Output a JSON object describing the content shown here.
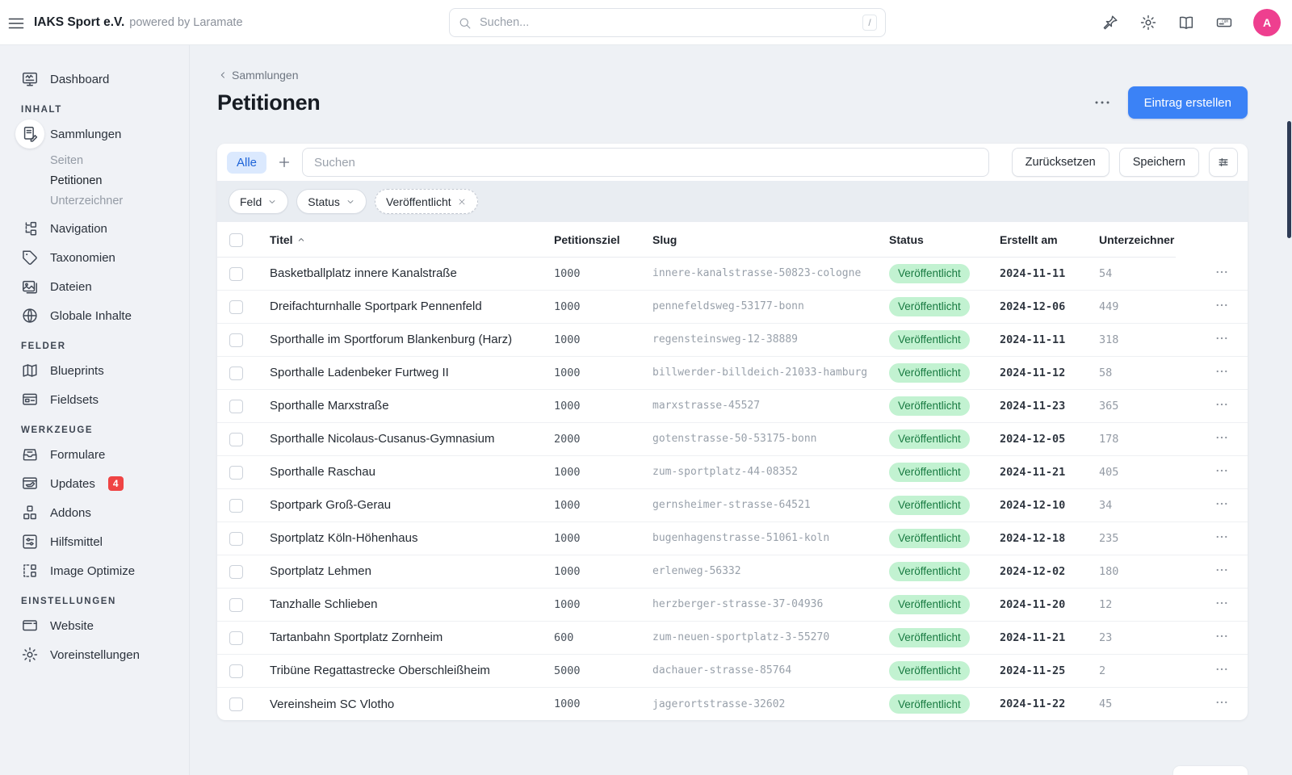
{
  "colors": {
    "accent": "#3b82f6",
    "status_published_bg": "#c2f2d1",
    "status_published_text": "#187a41",
    "updates_badge": "#ef4444",
    "avatar": "#ee3f8f"
  },
  "topbar": {
    "brand": "IAKS Sport e.V.",
    "brand_suffix": "powered by Laramate",
    "search_placeholder": "Suchen...",
    "search_shortcut": "/",
    "icons": [
      "pin",
      "gear",
      "book",
      "domain"
    ],
    "avatar_initial": "A"
  },
  "sidebar": {
    "sections": [
      {
        "header": "",
        "items": [
          {
            "label": "Dashboard",
            "icon": "dashboard"
          }
        ]
      },
      {
        "header": "INHALT",
        "items": [
          {
            "label": "Sammlungen",
            "icon": "collections",
            "active": true,
            "children": [
              {
                "label": "Seiten",
                "state": "muted"
              },
              {
                "label": "Petitionen",
                "state": "current"
              },
              {
                "label": "Unterzeichner",
                "state": "muted"
              }
            ]
          },
          {
            "label": "Navigation",
            "icon": "navigation"
          },
          {
            "label": "Taxonomien",
            "icon": "tag"
          },
          {
            "label": "Dateien",
            "icon": "assets"
          },
          {
            "label": "Globale Inhalte",
            "icon": "globe"
          }
        ]
      },
      {
        "header": "FELDER",
        "items": [
          {
            "label": "Blueprints",
            "icon": "blueprints"
          },
          {
            "label": "Fieldsets",
            "icon": "fieldsets"
          }
        ]
      },
      {
        "header": "WERKZEUGE",
        "items": [
          {
            "label": "Formulare",
            "icon": "forms"
          },
          {
            "label": "Updates",
            "icon": "updates",
            "badge": "4"
          },
          {
            "label": "Addons",
            "icon": "addons"
          },
          {
            "label": "Hilfsmittel",
            "icon": "utilities"
          },
          {
            "label": "Image Optimize",
            "icon": "image-optimize"
          }
        ]
      },
      {
        "header": "EINSTELLUNGEN",
        "items": [
          {
            "label": "Website",
            "icon": "website"
          },
          {
            "label": "Voreinstellungen",
            "icon": "preferences"
          }
        ]
      }
    ]
  },
  "page": {
    "breadcrumb": "Sammlungen",
    "title": "Petitionen",
    "create_button": "Eintrag erstellen"
  },
  "filters": {
    "tab": "Alle",
    "search_placeholder": "Suchen",
    "reset": "Zurücksetzen",
    "save": "Speichern",
    "chips": [
      {
        "label": "Feld",
        "type": "dropdown"
      },
      {
        "label": "Status",
        "type": "dropdown"
      },
      {
        "label": "Veröffentlicht",
        "type": "removable"
      }
    ]
  },
  "table": {
    "columns": [
      {
        "label": "Titel",
        "sorted": "asc"
      },
      {
        "label": "Petitionsziel"
      },
      {
        "label": "Slug"
      },
      {
        "label": "Status"
      },
      {
        "label": "Erstellt am"
      },
      {
        "label": "Unterzeichner"
      }
    ],
    "rows": [
      {
        "title": "Basketballplatz innere Kanalstraße",
        "goal": "1000",
        "slug": "innere-kanalstrasse-50823-cologne",
        "status": "Veröffentlicht",
        "created": "2024-11-11",
        "signers": "54"
      },
      {
        "title": "Dreifachturnhalle Sportpark Pennenfeld",
        "goal": "1000",
        "slug": "pennefeldsweg-53177-bonn",
        "status": "Veröffentlicht",
        "created": "2024-12-06",
        "signers": "449"
      },
      {
        "title": "Sporthalle im Sportforum Blankenburg (Harz)",
        "goal": "1000",
        "slug": "regensteinsweg-12-38889",
        "status": "Veröffentlicht",
        "created": "2024-11-11",
        "signers": "318"
      },
      {
        "title": "Sporthalle Ladenbeker Furtweg II",
        "goal": "1000",
        "slug": "billwerder-billdeich-21033-hamburg",
        "status": "Veröffentlicht",
        "created": "2024-11-12",
        "signers": "58"
      },
      {
        "title": "Sporthalle Marxstraße",
        "goal": "1000",
        "slug": "marxstrasse-45527",
        "status": "Veröffentlicht",
        "created": "2024-11-23",
        "signers": "365"
      },
      {
        "title": "Sporthalle Nicolaus-Cusanus-Gymnasium",
        "goal": "2000",
        "slug": "gotenstrasse-50-53175-bonn",
        "status": "Veröffentlicht",
        "created": "2024-12-05",
        "signers": "178"
      },
      {
        "title": "Sporthalle Raschau",
        "goal": "1000",
        "slug": "zum-sportplatz-44-08352",
        "status": "Veröffentlicht",
        "created": "2024-11-21",
        "signers": "405"
      },
      {
        "title": "Sportpark Groß-Gerau",
        "goal": "1000",
        "slug": "gernsheimer-strasse-64521",
        "status": "Veröffentlicht",
        "created": "2024-12-10",
        "signers": "34"
      },
      {
        "title": "Sportplatz Köln-Höhenhaus",
        "goal": "1000",
        "slug": "bugenhagenstrasse-51061-koln",
        "status": "Veröffentlicht",
        "created": "2024-12-18",
        "signers": "235"
      },
      {
        "title": "Sportplatz Lehmen",
        "goal": "1000",
        "slug": "erlenweg-56332",
        "status": "Veröffentlicht",
        "created": "2024-12-02",
        "signers": "180"
      },
      {
        "title": "Tanzhalle Schlieben",
        "goal": "1000",
        "slug": "herzberger-strasse-37-04936",
        "status": "Veröffentlicht",
        "created": "2024-11-20",
        "signers": "12"
      },
      {
        "title": "Tartanbahn Sportplatz Zornheim",
        "goal": "600",
        "slug": "zum-neuen-sportplatz-3-55270",
        "status": "Veröffentlicht",
        "created": "2024-11-21",
        "signers": "23"
      },
      {
        "title": "Tribüne Regattastrecke Oberschleißheim",
        "goal": "5000",
        "slug": "dachauer-strasse-85764",
        "status": "Veröffentlicht",
        "created": "2024-11-25",
        "signers": "2"
      },
      {
        "title": "Vereinsheim SC Vlotho",
        "goal": "1000",
        "slug": "jagerortstrasse-32602",
        "status": "Veröffentlicht",
        "created": "2024-11-22",
        "signers": "45"
      }
    ]
  }
}
